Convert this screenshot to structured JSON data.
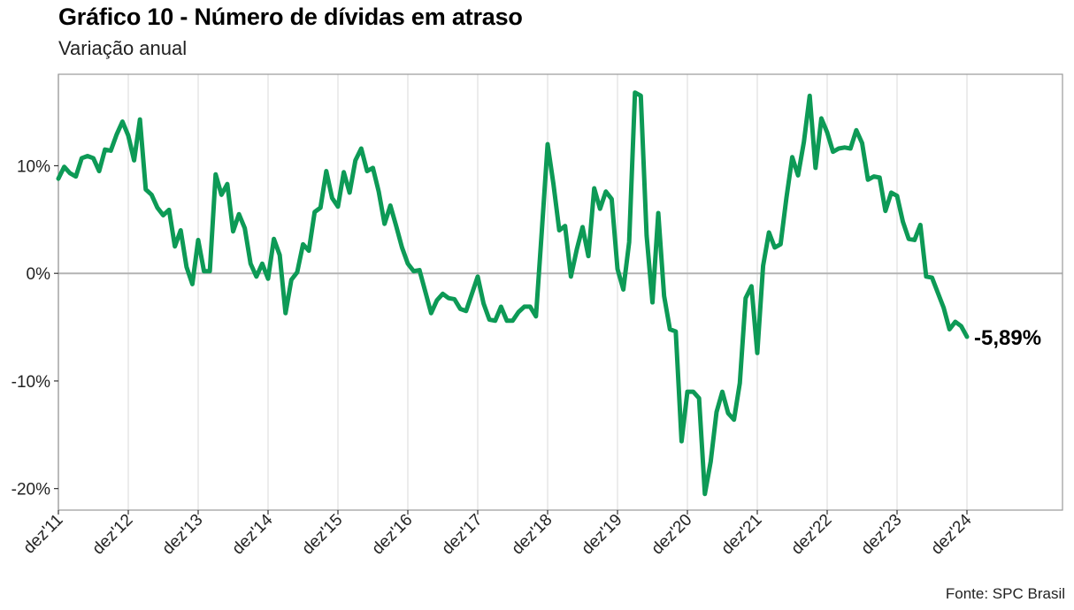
{
  "title": "Gráfico 10 - Número de dívidas em atraso",
  "subtitle": "Variação anual",
  "source": "Fonte: SPC Brasil",
  "chart_data": {
    "type": "line",
    "title": "Gráfico 10 - Número de dívidas em atraso",
    "subtitle": "Variação anual",
    "xlabel": "",
    "ylabel": "",
    "ylim": [
      -22,
      18.5
    ],
    "yticks": [
      -20,
      -10,
      0,
      10
    ],
    "ytick_labels": [
      "-20%",
      "-10%",
      "0%",
      "10%"
    ],
    "xticks": [
      "dez'11",
      "dez'12",
      "dez'13",
      "dez'14",
      "dez'15",
      "dez'16",
      "dez'17",
      "dez'18",
      "dez'19",
      "dez'20",
      "dez'21",
      "dez'22",
      "dez'23",
      "dez'24"
    ],
    "x_start": "dez'11",
    "x_end": "dez'24",
    "grid": "vertical",
    "reference_line": 0,
    "line_color": "#0d9a56",
    "end_label": "-5,89%",
    "series": [
      {
        "name": "",
        "values": [
          8.8,
          9.9,
          9.3,
          9.0,
          10.7,
          10.9,
          10.7,
          9.5,
          11.5,
          11.4,
          12.9,
          14.1,
          12.8,
          10.5,
          14.3,
          7.8,
          7.3,
          6.1,
          5.4,
          5.9,
          2.5,
          4.0,
          0.6,
          -1.0,
          3.1,
          0.2,
          0.2,
          9.2,
          7.3,
          8.3,
          3.9,
          5.5,
          4.2,
          0.9,
          -0.3,
          0.9,
          -0.5,
          3.2,
          1.7,
          -3.7,
          -0.6,
          0.1,
          2.7,
          2.1,
          5.7,
          6.1,
          9.5,
          7.0,
          6.2,
          9.4,
          7.5,
          10.5,
          11.6,
          9.5,
          9.8,
          7.6,
          4.6,
          6.3,
          4.4,
          2.4,
          0.9,
          0.2,
          0.3,
          -1.7,
          -3.7,
          -2.5,
          -1.9,
          -2.3,
          -2.4,
          -3.3,
          -3.5,
          -1.9,
          -0.3,
          -2.8,
          -4.3,
          -4.4,
          -3.1,
          -4.4,
          -4.4,
          -3.6,
          -3.1,
          -3.1,
          -4.0,
          3.9,
          12.0,
          8.3,
          4.0,
          4.4,
          -0.3,
          2.2,
          4.3,
          1.6,
          7.9,
          6.0,
          7.6,
          6.9,
          0.4,
          -1.5,
          2.9,
          16.8,
          16.5,
          3.5,
          -2.7,
          5.6,
          -2.1,
          -5.2,
          -5.4,
          -15.6,
          -11.0,
          -11.0,
          -11.6,
          -20.5,
          -17.5,
          -12.9,
          -11.0,
          -13.0,
          -13.6,
          -10.2,
          -2.3,
          -1.2,
          -7.4,
          0.7,
          3.8,
          2.4,
          2.7,
          7.0,
          10.8,
          9.1,
          12.2,
          16.5,
          9.8,
          14.4,
          13.1,
          11.3,
          11.6,
          11.7,
          11.6,
          13.3,
          12.1,
          8.7,
          9.0,
          8.9,
          5.8,
          7.5,
          7.2,
          4.8,
          3.2,
          3.1,
          4.5,
          -0.3,
          -0.4,
          -1.8,
          -3.2,
          -5.2,
          -4.5,
          -4.9,
          -5.89
        ]
      }
    ]
  }
}
